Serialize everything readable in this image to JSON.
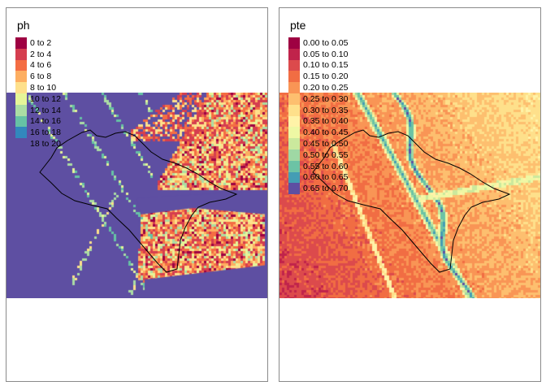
{
  "panels": [
    {
      "id": "ph",
      "legend_title": "ph",
      "legend": [
        {
          "label": "0 to 2",
          "color": "#9e0142"
        },
        {
          "label": "2 to 4",
          "color": "#d53e4f"
        },
        {
          "label": "4 to 6",
          "color": "#f46d43"
        },
        {
          "label": "6 to 8",
          "color": "#fdae61"
        },
        {
          "label": "8 to 10",
          "color": "#fee08b"
        },
        {
          "label": "10 to 12",
          "color": "#e6f598"
        },
        {
          "label": "12 to 14",
          "color": "#abdda4"
        },
        {
          "label": "14 to 16",
          "color": "#66c2a5"
        },
        {
          "label": "16 to 18",
          "color": "#3288bd"
        },
        {
          "label": "18 to 20",
          "color": "#5e4fa2"
        }
      ]
    },
    {
      "id": "pte",
      "legend_title": "pte",
      "legend": [
        {
          "label": "0.00 to 0.05",
          "color": "#9e0142"
        },
        {
          "label": "0.05 to 0.10",
          "color": "#c0234b"
        },
        {
          "label": "0.10 to 0.15",
          "color": "#dc4a4c"
        },
        {
          "label": "0.15 to 0.20",
          "color": "#f16d43"
        },
        {
          "label": "0.20 to 0.25",
          "color": "#f99555"
        },
        {
          "label": "0.25 to 0.30",
          "color": "#fdbf6f"
        },
        {
          "label": "0.30 to 0.35",
          "color": "#fee08b"
        },
        {
          "label": "0.35 to 0.40",
          "color": "#fff3a8"
        },
        {
          "label": "0.40 to 0.45",
          "color": "#eef8a4"
        },
        {
          "label": "0.45 to 0.50",
          "color": "#cbe99d"
        },
        {
          "label": "0.50 to 0.55",
          "color": "#9fd8a4"
        },
        {
          "label": "0.55 to 0.60",
          "color": "#6cc3a5"
        },
        {
          "label": "0.60 to 0.65",
          "color": "#449db4"
        },
        {
          "label": "0.65 to 0.70",
          "color": "#5e4fa2"
        }
      ]
    }
  ]
}
